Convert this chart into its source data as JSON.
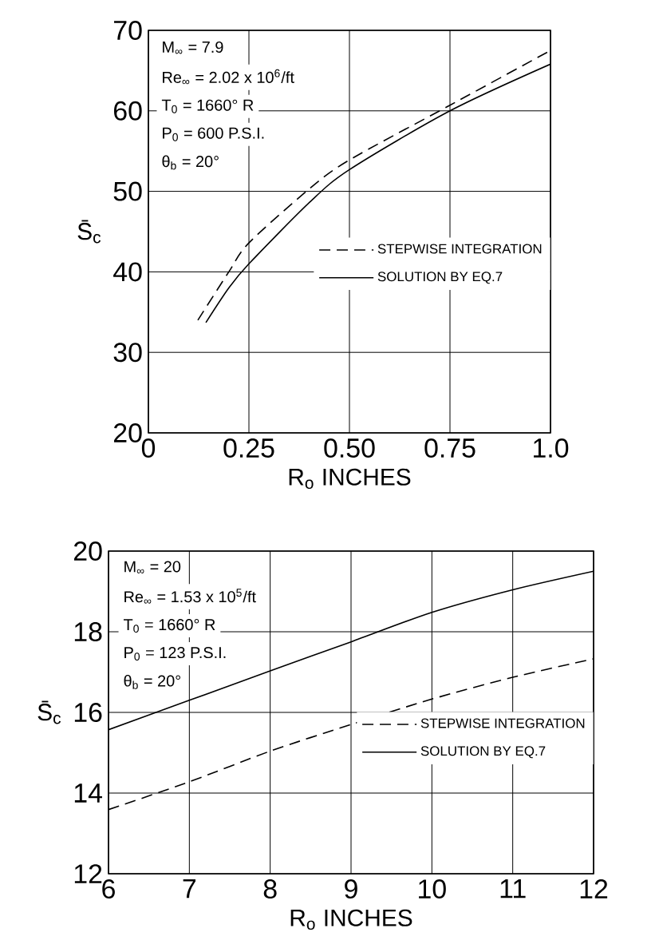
{
  "chart_data": [
    {
      "type": "line",
      "xlabel": "R$_{o}$ INCHES",
      "ylabel": "S̄$_{c}$",
      "annotations": [
        "M$_{∞}$ = 7.9",
        "Re$_{∞}$ = 2.02 x 10$^{6}$/ft",
        "T$_{0}$ = 1660° R",
        "P$_{0}$ = 600 P.S.I.",
        "θ$_{b}$ = 20°"
      ],
      "series": [
        {
          "name": "STEPWISE INTEGRATION",
          "color": "#000000",
          "line_style": "dashed",
          "x": [
            0.123,
            0.2,
            0.25,
            0.4,
            0.5,
            0.75,
            1.0
          ],
          "values": [
            34.0,
            40.0,
            43.6,
            50.3,
            53.9,
            60.7,
            67.5
          ]
        },
        {
          "name": "SOLUTION BY EQ.7",
          "color": "#000000",
          "line_style": "solid",
          "x": [
            0.143,
            0.2,
            0.25,
            0.4,
            0.5,
            0.75,
            1.0
          ],
          "values": [
            33.7,
            38.0,
            41.0,
            48.6,
            52.7,
            60.0,
            65.8
          ]
        }
      ],
      "xlim": [
        0,
        1.0
      ],
      "ylim": [
        20,
        70
      ],
      "xticks": [
        0,
        0.25,
        {
          "value": 0.5,
          "label": "0.50"
        },
        0.75,
        {
          "value": 1.0,
          "label": "1.0"
        }
      ],
      "yticks": [
        20,
        30,
        40,
        50,
        60,
        70
      ],
      "grid": true,
      "legend": "right",
      "marker": "none"
    },
    {
      "type": "line",
      "xlabel": "R$_{o}$ INCHES",
      "ylabel": "S̄$_{c}$",
      "annotations": [
        "M$_{∞}$ = 20",
        "Re$_{∞}$ = 1.53 x 10$^{5}$/ft",
        "T$_{0}$ = 1660° R",
        "P$_{0}$ = 123 P.S.I.",
        "θ$_{b}$ = 20°"
      ],
      "series": [
        {
          "name": "STEPWISE INTEGRATION",
          "color": "#000000",
          "line_style": "dashed",
          "x": [
            6,
            7,
            8,
            9,
            10,
            11,
            12
          ],
          "values": [
            13.59,
            14.28,
            15.04,
            15.7,
            16.33,
            16.87,
            17.33
          ]
        },
        {
          "name": "SOLUTION BY EQ.7",
          "color": "#000000",
          "line_style": "solid",
          "x": [
            6,
            7,
            8,
            9,
            10,
            11,
            12
          ],
          "values": [
            15.57,
            16.3,
            17.03,
            17.75,
            18.48,
            19.04,
            19.5
          ]
        }
      ],
      "xlim": [
        6,
        12
      ],
      "ylim": [
        12,
        20
      ],
      "xticks": [
        6,
        7,
        8,
        9,
        10,
        11,
        12
      ],
      "yticks": [
        12,
        14,
        16,
        18,
        20
      ],
      "grid": true,
      "legend": "right",
      "marker": "none"
    }
  ]
}
